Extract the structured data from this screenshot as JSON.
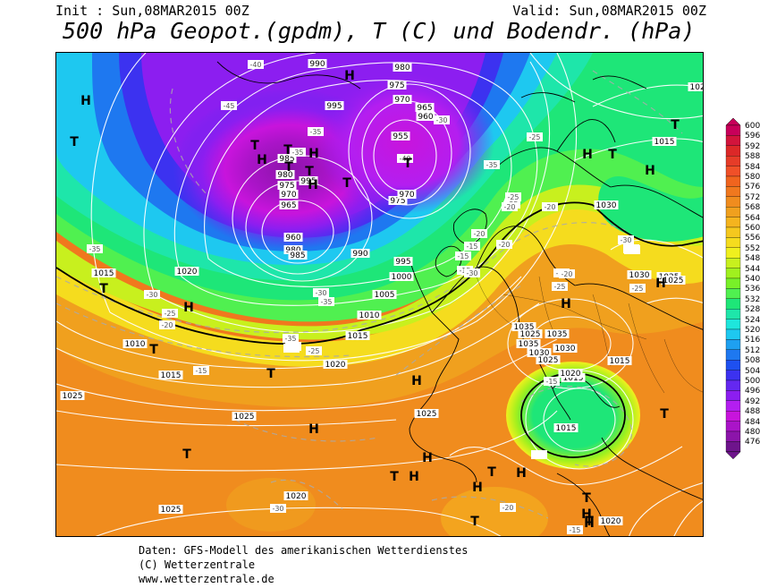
{
  "header": {
    "init": "Init : Sun,08MAR2015 00Z",
    "valid": "Valid: Sun,08MAR2015 00Z",
    "title": "500 hPa Geopot.(gpdm), T (C) und Bodendr. (hPa)"
  },
  "footer": {
    "line1": "Daten: GFS-Modell des amerikanischen Wetterdienstes",
    "line2": "(C) Wetterzentrale",
    "line3": "www.wetterzentrale.de"
  },
  "legend": {
    "levels": [
      "600",
      "596",
      "592",
      "588",
      "584",
      "580",
      "576",
      "572",
      "568",
      "564",
      "560",
      "556",
      "552",
      "548",
      "544",
      "540",
      "536",
      "532",
      "528",
      "524",
      "520",
      "516",
      "512",
      "508",
      "504",
      "500",
      "496",
      "492",
      "488",
      "484",
      "480",
      "476"
    ],
    "colors": [
      "#c8005a",
      "#d2143c",
      "#dc2828",
      "#e63c28",
      "#f05028",
      "#f0641e",
      "#f0781e",
      "#f08c1e",
      "#f0a01e",
      "#f5b41e",
      "#f5c81e",
      "#f5dc1e",
      "#f0f01e",
      "#c8f01e",
      "#a0f01e",
      "#78f028",
      "#50f050",
      "#1ee678",
      "#1ee6aa",
      "#1ee6dc",
      "#1ec8f0",
      "#1ea0f0",
      "#1e78f0",
      "#1e50f0",
      "#3c32f0",
      "#6428f0",
      "#8c1ef0",
      "#b41ef0",
      "#c814dc",
      "#aa14c8",
      "#8c14aa",
      "#6e148c"
    ]
  },
  "pressure_labels": [
    {
      "t": "990"
    },
    {
      "t": "980"
    },
    {
      "t": "975"
    },
    {
      "t": "970"
    },
    {
      "t": "965"
    },
    {
      "t": "960"
    },
    {
      "t": "955"
    },
    {
      "t": "995"
    },
    {
      "t": "985"
    },
    {
      "t": "980"
    },
    {
      "t": "975"
    },
    {
      "t": "970"
    },
    {
      "t": "965"
    },
    {
      "t": "960"
    },
    {
      "t": "980"
    },
    {
      "t": "985"
    },
    {
      "t": "990"
    },
    {
      "t": "995"
    },
    {
      "t": "1000"
    },
    {
      "t": "1005"
    },
    {
      "t": "1010"
    },
    {
      "t": "1015"
    },
    {
      "t": "1020"
    },
    {
      "t": "1015"
    },
    {
      "t": "1010"
    },
    {
      "t": "1015"
    },
    {
      "t": "1020"
    },
    {
      "t": "1025"
    },
    {
      "t": "1025"
    },
    {
      "t": "1025"
    },
    {
      "t": "1020"
    },
    {
      "t": "1025"
    },
    {
      "t": "1015"
    },
    {
      "t": "1035"
    },
    {
      "t": "1025"
    },
    {
      "t": "1030"
    },
    {
      "t": "1025"
    },
    {
      "t": "1035"
    },
    {
      "t": "1035"
    },
    {
      "t": "1030"
    },
    {
      "t": "1030"
    },
    {
      "t": "1025"
    },
    {
      "t": "1020"
    },
    {
      "t": "1015"
    },
    {
      "t": "1015"
    },
    {
      "t": "1020"
    },
    {
      "t": "1025"
    },
    {
      "t": "1015"
    },
    {
      "t": "1025"
    },
    {
      "t": "1030"
    },
    {
      "t": "995"
    },
    {
      "t": "975"
    },
    {
      "t": "970"
    }
  ],
  "temp_labels": [
    {
      "t": "-40"
    },
    {
      "t": "-45"
    },
    {
      "t": "-35"
    },
    {
      "t": "-35"
    },
    {
      "t": "-40"
    },
    {
      "t": "-30"
    },
    {
      "t": "-35"
    },
    {
      "t": "-30"
    },
    {
      "t": "-30"
    },
    {
      "t": "-25"
    },
    {
      "t": "-20"
    },
    {
      "t": "-25"
    },
    {
      "t": "-15"
    },
    {
      "t": "-35"
    },
    {
      "t": "-30"
    },
    {
      "t": "-35"
    },
    {
      "t": "-30"
    },
    {
      "t": "-25"
    },
    {
      "t": "-30"
    },
    {
      "t": "-25"
    },
    {
      "t": "-20"
    },
    {
      "t": "-15"
    },
    {
      "t": "-15"
    },
    {
      "t": "-20"
    },
    {
      "t": "-15"
    },
    {
      "t": "-25"
    },
    {
      "t": "-35"
    },
    {
      "t": "-30"
    },
    {
      "t": "-25"
    },
    {
      "t": "-20"
    },
    {
      "t": "-20"
    },
    {
      "t": "-25"
    },
    {
      "t": "-20"
    },
    {
      "t": "-20"
    },
    {
      "t": "-15"
    },
    {
      "t": "-20"
    },
    {
      "t": "-15"
    },
    {
      "t": "-30"
    }
  ],
  "contour_labels": [
    "552",
    "552",
    "552"
  ],
  "pressure_centers": [
    {
      "t": "H"
    },
    {
      "t": "T"
    },
    {
      "t": "T"
    },
    {
      "t": "H"
    },
    {
      "t": "T"
    },
    {
      "t": "T"
    },
    {
      "t": "H"
    },
    {
      "t": "T"
    },
    {
      "t": "H"
    },
    {
      "t": "T"
    },
    {
      "t": "H"
    },
    {
      "t": "H"
    },
    {
      "t": "T"
    },
    {
      "t": "T"
    },
    {
      "t": "H"
    },
    {
      "t": "T"
    },
    {
      "t": "H"
    },
    {
      "t": "T"
    },
    {
      "t": "T"
    },
    {
      "t": "H"
    },
    {
      "t": "H"
    },
    {
      "t": "T"
    },
    {
      "t": "H"
    },
    {
      "t": "H"
    },
    {
      "t": "H"
    },
    {
      "t": "H"
    },
    {
      "t": "T"
    },
    {
      "t": "T"
    },
    {
      "t": "T"
    },
    {
      "t": "H"
    },
    {
      "t": "H"
    },
    {
      "t": "T"
    },
    {
      "t": "H"
    },
    {
      "t": "T"
    },
    {
      "t": "T"
    },
    {
      "t": "H"
    },
    {
      "t": "T"
    }
  ]
}
